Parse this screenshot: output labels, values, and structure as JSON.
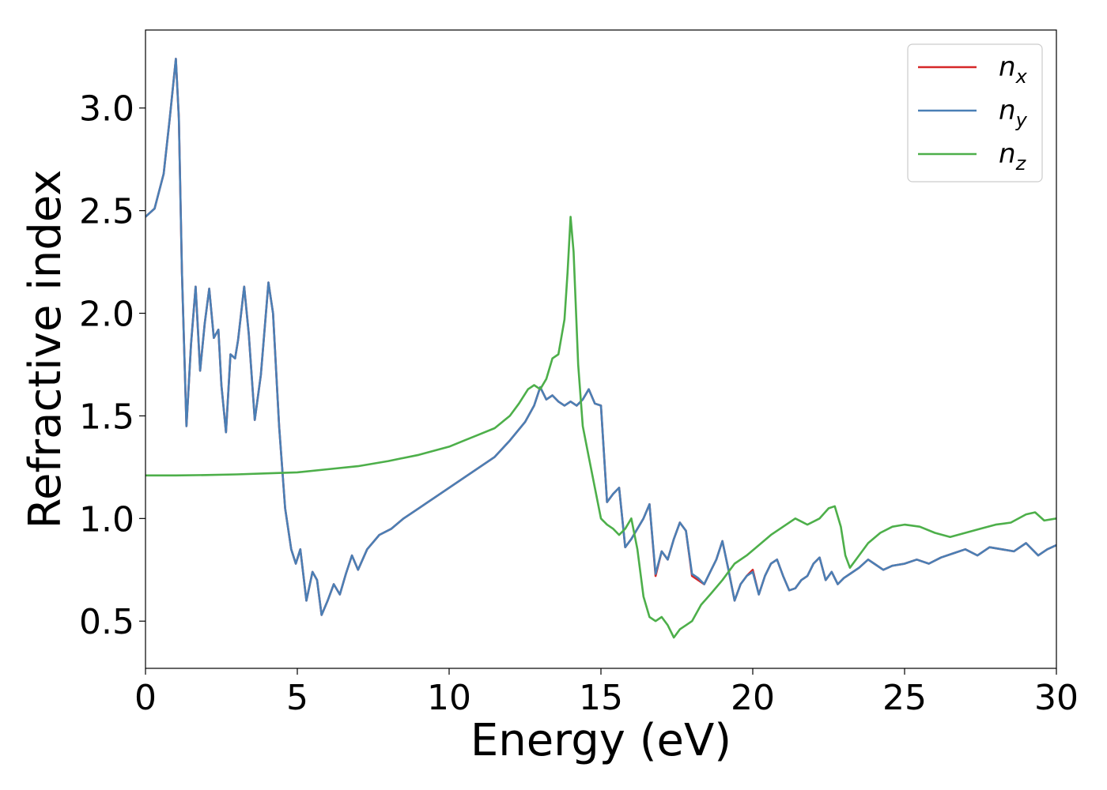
{
  "chart_data": {
    "type": "line",
    "title": "",
    "xlabel": "Energy (eV)",
    "ylabel": "Refractive index",
    "xlim": [
      0,
      30
    ],
    "ylim": [
      0.27,
      3.38
    ],
    "xticks": [
      0,
      5,
      10,
      15,
      20,
      25,
      30
    ],
    "xtick_labels": [
      "0",
      "5",
      "10",
      "15",
      "20",
      "25",
      "30"
    ],
    "yticks": [
      0.5,
      1.0,
      1.5,
      2.0,
      2.5,
      3.0
    ],
    "ytick_labels": [
      "0.5",
      "1.0",
      "1.5",
      "2.0",
      "2.5",
      "3.0"
    ],
    "grid": false,
    "legend_position": "top-right",
    "series": [
      {
        "name": "n",
        "subscript": "x",
        "color": "#d62728",
        "x": [
          0,
          0.3,
          0.6,
          0.8,
          1.0,
          1.1,
          1.2,
          1.35,
          1.5,
          1.65,
          1.8,
          1.95,
          2.1,
          2.25,
          2.4,
          2.5,
          2.65,
          2.8,
          2.95,
          3.05,
          3.25,
          3.4,
          3.6,
          3.8,
          4.05,
          4.2,
          4.4,
          4.6,
          4.8,
          4.95,
          5.1,
          5.3,
          5.5,
          5.65,
          5.8,
          6.0,
          6.2,
          6.4,
          6.6,
          6.8,
          7.0,
          7.3,
          7.7,
          8.1,
          8.5,
          9.0,
          9.5,
          10.0,
          10.5,
          11.0,
          11.5,
          12.0,
          12.5,
          12.8,
          13.0,
          13.2,
          13.4,
          13.6,
          13.8,
          14.0,
          14.2,
          14.4,
          14.6,
          14.8,
          15.0,
          15.2,
          15.4,
          15.6,
          15.8,
          16.0,
          16.2,
          16.4,
          16.6,
          16.8,
          17.0,
          17.2,
          17.4,
          17.6,
          17.8,
          18.0,
          18.2,
          18.4,
          18.6,
          18.8,
          19.0,
          19.2,
          19.4,
          19.6,
          19.8,
          20.0,
          20.2,
          20.4,
          20.6,
          20.8,
          21.0,
          21.2,
          21.4,
          21.6,
          21.8,
          22.0,
          22.2,
          22.4,
          22.6,
          22.8,
          23.0,
          23.2,
          23.5,
          23.8,
          24.0,
          24.3,
          24.6,
          25.0,
          25.4,
          25.8,
          26.2,
          26.6,
          27.0,
          27.4,
          27.8,
          28.2,
          28.6,
          29.0,
          29.4,
          29.7,
          30.0
        ],
        "y": [
          2.47,
          2.51,
          2.68,
          2.95,
          3.24,
          2.95,
          2.2,
          1.45,
          1.85,
          2.13,
          1.72,
          1.95,
          2.12,
          1.88,
          1.92,
          1.65,
          1.42,
          1.8,
          1.78,
          1.87,
          2.13,
          1.9,
          1.48,
          1.7,
          2.15,
          2.0,
          1.45,
          1.05,
          0.85,
          0.78,
          0.85,
          0.6,
          0.74,
          0.7,
          0.53,
          0.6,
          0.68,
          0.63,
          0.73,
          0.82,
          0.75,
          0.85,
          0.92,
          0.95,
          1.0,
          1.05,
          1.1,
          1.15,
          1.2,
          1.25,
          1.3,
          1.38,
          1.47,
          1.55,
          1.64,
          1.58,
          1.6,
          1.57,
          1.55,
          1.57,
          1.55,
          1.58,
          1.63,
          1.56,
          1.55,
          1.08,
          1.12,
          1.15,
          0.86,
          0.9,
          0.95,
          1.0,
          1.07,
          0.72,
          0.84,
          0.8,
          0.9,
          0.98,
          0.94,
          0.72,
          0.7,
          0.68,
          0.74,
          0.8,
          0.89,
          0.75,
          0.6,
          0.68,
          0.72,
          0.75,
          0.63,
          0.72,
          0.78,
          0.8,
          0.72,
          0.65,
          0.66,
          0.7,
          0.72,
          0.78,
          0.81,
          0.7,
          0.74,
          0.68,
          0.71,
          0.73,
          0.76,
          0.8,
          0.78,
          0.75,
          0.77,
          0.78,
          0.8,
          0.78,
          0.81,
          0.83,
          0.85,
          0.82,
          0.86,
          0.85,
          0.84,
          0.88,
          0.82,
          0.85,
          0.87
        ]
      },
      {
        "name": "n",
        "subscript": "y",
        "color": "#4a7fb5",
        "x": [
          0,
          0.3,
          0.6,
          0.8,
          1.0,
          1.1,
          1.2,
          1.35,
          1.5,
          1.65,
          1.8,
          1.95,
          2.1,
          2.25,
          2.4,
          2.5,
          2.65,
          2.8,
          2.95,
          3.05,
          3.25,
          3.4,
          3.6,
          3.8,
          4.05,
          4.2,
          4.4,
          4.6,
          4.8,
          4.95,
          5.1,
          5.3,
          5.5,
          5.65,
          5.8,
          6.0,
          6.2,
          6.4,
          6.6,
          6.8,
          7.0,
          7.3,
          7.7,
          8.1,
          8.5,
          9.0,
          9.5,
          10.0,
          10.5,
          11.0,
          11.5,
          12.0,
          12.5,
          12.8,
          13.0,
          13.2,
          13.4,
          13.6,
          13.8,
          14.0,
          14.2,
          14.4,
          14.6,
          14.8,
          15.0,
          15.2,
          15.4,
          15.6,
          15.8,
          16.0,
          16.2,
          16.4,
          16.6,
          16.8,
          17.0,
          17.2,
          17.4,
          17.6,
          17.8,
          18.0,
          18.2,
          18.4,
          18.6,
          18.8,
          19.0,
          19.2,
          19.4,
          19.6,
          19.8,
          20.0,
          20.2,
          20.4,
          20.6,
          20.8,
          21.0,
          21.2,
          21.4,
          21.6,
          21.8,
          22.0,
          22.2,
          22.4,
          22.6,
          22.8,
          23.0,
          23.2,
          23.5,
          23.8,
          24.0,
          24.3,
          24.6,
          25.0,
          25.4,
          25.8,
          26.2,
          26.6,
          27.0,
          27.4,
          27.8,
          28.2,
          28.6,
          29.0,
          29.4,
          29.7,
          30.0
        ],
        "y": [
          2.47,
          2.51,
          2.68,
          2.95,
          3.24,
          2.95,
          2.2,
          1.45,
          1.85,
          2.13,
          1.72,
          1.95,
          2.12,
          1.88,
          1.92,
          1.65,
          1.42,
          1.8,
          1.78,
          1.87,
          2.13,
          1.9,
          1.48,
          1.7,
          2.15,
          2.0,
          1.45,
          1.05,
          0.85,
          0.78,
          0.85,
          0.6,
          0.74,
          0.7,
          0.53,
          0.6,
          0.68,
          0.63,
          0.73,
          0.82,
          0.75,
          0.85,
          0.92,
          0.95,
          1.0,
          1.05,
          1.1,
          1.15,
          1.2,
          1.25,
          1.3,
          1.38,
          1.47,
          1.55,
          1.64,
          1.58,
          1.6,
          1.57,
          1.55,
          1.57,
          1.55,
          1.58,
          1.63,
          1.56,
          1.55,
          1.08,
          1.12,
          1.15,
          0.86,
          0.9,
          0.95,
          1.0,
          1.07,
          0.73,
          0.84,
          0.8,
          0.9,
          0.98,
          0.94,
          0.73,
          0.71,
          0.68,
          0.74,
          0.8,
          0.89,
          0.75,
          0.6,
          0.68,
          0.72,
          0.74,
          0.63,
          0.72,
          0.78,
          0.8,
          0.72,
          0.65,
          0.66,
          0.7,
          0.72,
          0.78,
          0.81,
          0.7,
          0.74,
          0.68,
          0.71,
          0.73,
          0.76,
          0.8,
          0.78,
          0.75,
          0.77,
          0.78,
          0.8,
          0.78,
          0.81,
          0.83,
          0.85,
          0.82,
          0.86,
          0.85,
          0.84,
          0.88,
          0.82,
          0.85,
          0.87
        ]
      },
      {
        "name": "n",
        "subscript": "z",
        "color": "#4daf4a",
        "x": [
          0,
          1,
          2,
          3,
          4,
          5,
          6,
          7,
          8,
          9,
          10,
          10.5,
          11,
          11.5,
          12,
          12.3,
          12.6,
          12.8,
          13.0,
          13.2,
          13.4,
          13.6,
          13.8,
          13.9,
          14.0,
          14.1,
          14.25,
          14.4,
          14.6,
          14.8,
          15.0,
          15.2,
          15.4,
          15.6,
          15.8,
          16.0,
          16.2,
          16.4,
          16.6,
          16.8,
          17.0,
          17.2,
          17.4,
          17.6,
          17.8,
          18.0,
          18.3,
          18.6,
          19.0,
          19.4,
          19.8,
          20.2,
          20.6,
          21.0,
          21.4,
          21.8,
          22.2,
          22.5,
          22.7,
          22.9,
          23.05,
          23.2,
          23.5,
          23.8,
          24.2,
          24.6,
          25.0,
          25.5,
          26.0,
          26.5,
          27.0,
          27.5,
          28.0,
          28.5,
          29.0,
          29.3,
          29.6,
          30.0
        ],
        "y": [
          1.21,
          1.21,
          1.212,
          1.215,
          1.22,
          1.225,
          1.24,
          1.255,
          1.28,
          1.31,
          1.35,
          1.38,
          1.41,
          1.44,
          1.5,
          1.56,
          1.63,
          1.65,
          1.63,
          1.68,
          1.78,
          1.8,
          1.97,
          2.2,
          2.47,
          2.3,
          1.75,
          1.45,
          1.3,
          1.15,
          1.0,
          0.97,
          0.95,
          0.92,
          0.95,
          1.0,
          0.85,
          0.62,
          0.52,
          0.5,
          0.52,
          0.48,
          0.42,
          0.46,
          0.48,
          0.5,
          0.58,
          0.63,
          0.7,
          0.78,
          0.82,
          0.87,
          0.92,
          0.96,
          1.0,
          0.97,
          1.0,
          1.05,
          1.06,
          0.96,
          0.82,
          0.76,
          0.82,
          0.88,
          0.93,
          0.96,
          0.97,
          0.96,
          0.93,
          0.91,
          0.93,
          0.95,
          0.97,
          0.98,
          1.02,
          1.03,
          0.99,
          1.0
        ]
      }
    ]
  }
}
